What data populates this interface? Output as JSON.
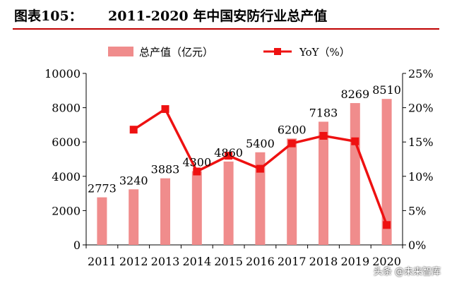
{
  "figure": {
    "label": "图表105：",
    "title": "2011-2020 年中国安防行业总产值"
  },
  "watermark": "头条 @未来智库",
  "colors": {
    "bar": "#f08c8c",
    "line": "#ee1111",
    "title_rule": "#c00000"
  },
  "chart_data": {
    "type": "bar",
    "categories": [
      "2011",
      "2012",
      "2013",
      "2014",
      "2015",
      "2016",
      "2017",
      "2018",
      "2019",
      "2020"
    ],
    "series": [
      {
        "name": "总产值（亿元）",
        "type": "bar",
        "axis": "left",
        "values": [
          2773,
          3240,
          3883,
          4300,
          4860,
          5400,
          6200,
          7183,
          8269,
          8510
        ],
        "labels": [
          "2773",
          "3240",
          "3883",
          "4300",
          "4860",
          "5400",
          "6200",
          "7183",
          "8269",
          "8510"
        ]
      },
      {
        "name": "YoY（%）",
        "type": "line",
        "axis": "right",
        "values": [
          null,
          16.8,
          19.8,
          10.7,
          13.0,
          11.1,
          14.8,
          15.9,
          15.1,
          2.9
        ]
      }
    ],
    "y_left": {
      "min": 0,
      "max": 10000,
      "ticks": [
        "0",
        "2000",
        "4000",
        "6000",
        "8000",
        "10000"
      ]
    },
    "y_right": {
      "min": 0,
      "max": 25,
      "ticks": [
        "0%",
        "5%",
        "10%",
        "15%",
        "20%",
        "25%"
      ]
    },
    "legend": "top",
    "grid": false
  }
}
